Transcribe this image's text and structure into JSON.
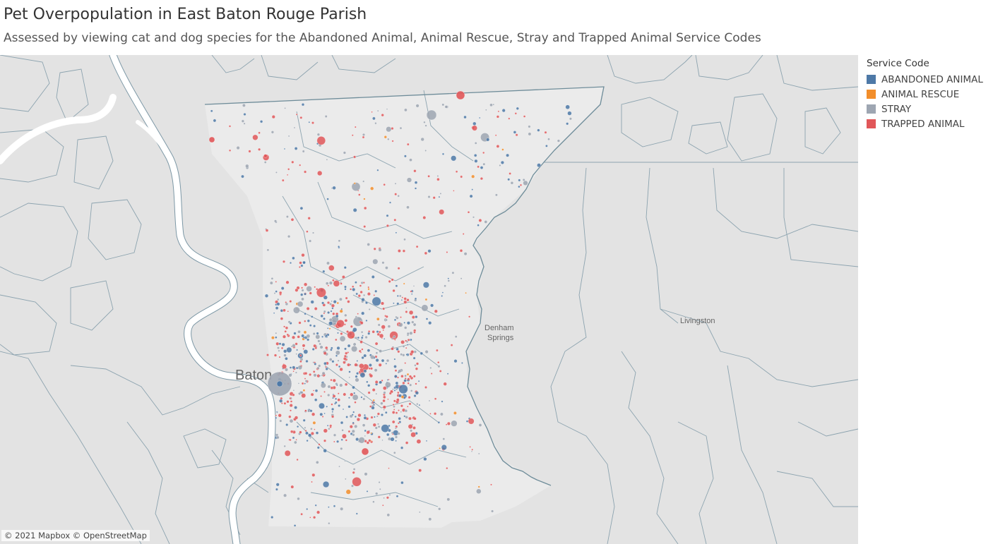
{
  "header": {
    "title": "Pet Overpopulation in East Baton Rouge Parish",
    "subtitle": "Assessed by viewing cat and dog species for the Abandoned Animal, Animal Rescue, Stray and Trapped Animal Service Codes"
  },
  "legend": {
    "title": "Service Code",
    "items": [
      {
        "label": "ABANDONED ANIMAL",
        "color": "#4e79a7"
      },
      {
        "label": "ANIMAL RESCUE",
        "color": "#f28e2b"
      },
      {
        "label": "STRAY",
        "color": "#9ea6b2"
      },
      {
        "label": "TRAPPED ANIMAL",
        "color": "#e15759"
      }
    ]
  },
  "map": {
    "labels": {
      "baton": "Baton",
      "denham1": "Denham",
      "denham2": "Springs",
      "livingston": "Livingston"
    },
    "attribution": "© 2021 Mapbox © OpenStreetMap",
    "colors": {
      "background": "#e3e3e3",
      "river": "#ffffff",
      "river_edge": "#7d98a6",
      "boundary": "#7d98a6",
      "parish_fill": "#ebebeb"
    }
  }
}
